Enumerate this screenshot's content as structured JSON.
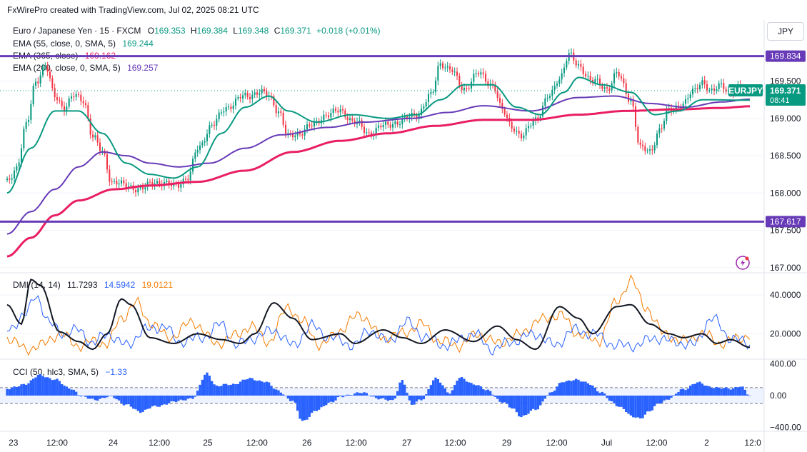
{
  "watermark": "FxWirePro created with TradingView.com, Jul 02, 2025 08:21 UTC",
  "symbol": {
    "name": "Euro / Japanese Yen · 15 · FXCM",
    "o_label": "O",
    "o": "169.353",
    "h_label": "H",
    "h": "169.384",
    "l_label": "L",
    "l": "169.348",
    "c_label": "C",
    "c": "169.371",
    "change": "+0.018 (+0.01%)"
  },
  "currency_button": "JPY",
  "ticker_label": "EURJPY",
  "last_price": "169.371",
  "countdown": "08:41",
  "colors": {
    "up": "#089981",
    "down": "#f23645",
    "ema55": "#089981",
    "ema365": "#e91e63",
    "ema200": "#673ab7",
    "hline": "#673ab7",
    "di_plus": "#2962ff",
    "di_minus": "#f57c00",
    "adx": "#131722",
    "cci": "#2962ff"
  },
  "legend": {
    "ema55": {
      "name": "EMA (55, close, 0, SMA, 5)",
      "value": "169.244"
    },
    "ema365": {
      "name": "EMA (365, close)",
      "value": "169.162"
    },
    "ema200": {
      "name": "EMA (200, close, 0, SMA, 5)",
      "value": "169.257"
    }
  },
  "dmi_legend": {
    "name": "DMI (14, 14)",
    "v1": "11.7293",
    "v2": "14.5942",
    "v3": "19.0121"
  },
  "cci_legend": {
    "name": "CCI (50, hlc3, SMA, 5)",
    "value": "−1.33"
  },
  "chart_data": [
    {
      "type": "candlestick",
      "title": "Euro / Japanese Yen · 15 · FXCM",
      "price_ticks": [
        "169.500",
        "169.000",
        "168.500",
        "168.000",
        "167.500",
        "167.000"
      ],
      "price_tick_values": [
        169.5,
        169.0,
        168.5,
        168.0,
        167.5,
        167.0
      ],
      "ylim": [
        166.95,
        170.3
      ],
      "horizontal_lines": [
        169.834,
        167.617
      ],
      "horizontal_line_labels": [
        "169.834",
        "167.617"
      ],
      "price_anchors": [
        [
          0,
          168.15
        ],
        [
          4,
          168.35
        ],
        [
          8,
          168.9
        ],
        [
          12,
          169.5
        ],
        [
          16,
          169.7
        ],
        [
          20,
          169.3
        ],
        [
          24,
          169.15
        ],
        [
          28,
          169.3
        ],
        [
          32,
          169.25
        ],
        [
          36,
          168.75
        ],
        [
          40,
          168.55
        ],
        [
          44,
          168.15
        ],
        [
          50,
          168.1
        ],
        [
          56,
          168.05
        ],
        [
          62,
          168.15
        ],
        [
          70,
          168.1
        ],
        [
          76,
          168.2
        ],
        [
          80,
          168.6
        ],
        [
          86,
          168.9
        ],
        [
          92,
          169.15
        ],
        [
          100,
          169.3
        ],
        [
          106,
          169.35
        ],
        [
          110,
          169.3
        ],
        [
          114,
          169.1
        ],
        [
          118,
          168.75
        ],
        [
          122,
          168.8
        ],
        [
          128,
          168.9
        ],
        [
          134,
          169.05
        ],
        [
          140,
          169.1
        ],
        [
          146,
          168.95
        ],
        [
          152,
          168.8
        ],
        [
          158,
          168.9
        ],
        [
          164,
          168.95
        ],
        [
          172,
          169.05
        ],
        [
          178,
          169.3
        ],
        [
          182,
          169.75
        ],
        [
          186,
          169.65
        ],
        [
          192,
          169.4
        ],
        [
          198,
          169.6
        ],
        [
          204,
          169.45
        ],
        [
          208,
          169.1
        ],
        [
          212,
          168.9
        ],
        [
          216,
          168.75
        ],
        [
          222,
          169.0
        ],
        [
          228,
          169.3
        ],
        [
          232,
          169.55
        ],
        [
          236,
          169.85
        ],
        [
          240,
          169.7
        ],
        [
          246,
          169.5
        ],
        [
          252,
          169.4
        ],
        [
          256,
          169.6
        ],
        [
          262,
          169.25
        ],
        [
          266,
          168.6
        ],
        [
          270,
          168.55
        ],
        [
          274,
          168.85
        ],
        [
          278,
          169.1
        ],
        [
          284,
          169.2
        ],
        [
          288,
          169.35
        ],
        [
          292,
          169.5
        ],
        [
          296,
          169.35
        ],
        [
          300,
          169.45
        ],
        [
          304,
          169.35
        ],
        [
          308,
          169.4
        ],
        [
          312,
          169.371
        ]
      ],
      "ema55_anchors": [
        [
          0,
          168.0
        ],
        [
          10,
          168.6
        ],
        [
          20,
          169.1
        ],
        [
          30,
          169.1
        ],
        [
          40,
          168.8
        ],
        [
          50,
          168.4
        ],
        [
          60,
          168.25
        ],
        [
          70,
          168.2
        ],
        [
          80,
          168.35
        ],
        [
          90,
          168.8
        ],
        [
          100,
          169.15
        ],
        [
          110,
          169.3
        ],
        [
          118,
          169.1
        ],
        [
          130,
          168.95
        ],
        [
          145,
          169.05
        ],
        [
          160,
          169.0
        ],
        [
          172,
          169.05
        ],
        [
          182,
          169.25
        ],
        [
          192,
          169.45
        ],
        [
          204,
          169.45
        ],
        [
          214,
          169.15
        ],
        [
          224,
          169.05
        ],
        [
          234,
          169.35
        ],
        [
          240,
          169.55
        ],
        [
          250,
          169.45
        ],
        [
          262,
          169.35
        ],
        [
          272,
          169.05
        ],
        [
          282,
          169.1
        ],
        [
          292,
          169.25
        ],
        [
          312,
          169.244
        ]
      ],
      "ema365_anchors": [
        [
          0,
          167.15
        ],
        [
          10,
          167.4
        ],
        [
          20,
          167.7
        ],
        [
          30,
          167.9
        ],
        [
          45,
          168.05
        ],
        [
          60,
          168.1
        ],
        [
          80,
          168.15
        ],
        [
          100,
          168.3
        ],
        [
          120,
          168.55
        ],
        [
          140,
          168.7
        ],
        [
          160,
          168.8
        ],
        [
          180,
          168.9
        ],
        [
          200,
          168.98
        ],
        [
          220,
          168.98
        ],
        [
          240,
          169.05
        ],
        [
          260,
          169.1
        ],
        [
          280,
          169.12
        ],
        [
          300,
          169.14
        ],
        [
          312,
          169.162
        ]
      ],
      "ema200_anchors": [
        [
          0,
          167.45
        ],
        [
          10,
          167.75
        ],
        [
          20,
          168.05
        ],
        [
          30,
          168.35
        ],
        [
          40,
          168.55
        ],
        [
          50,
          168.5
        ],
        [
          60,
          168.4
        ],
        [
          72,
          168.35
        ],
        [
          85,
          168.4
        ],
        [
          100,
          168.6
        ],
        [
          115,
          168.78
        ],
        [
          135,
          168.88
        ],
        [
          150,
          168.95
        ],
        [
          170,
          169.0
        ],
        [
          185,
          169.08
        ],
        [
          200,
          169.17
        ],
        [
          220,
          169.1
        ],
        [
          240,
          169.28
        ],
        [
          255,
          169.3
        ],
        [
          270,
          169.2
        ],
        [
          285,
          169.15
        ],
        [
          300,
          169.22
        ],
        [
          312,
          169.257
        ]
      ]
    },
    {
      "type": "line",
      "title": "DMI (14, 14)",
      "yticks": [
        "40.0000",
        "20.0000"
      ],
      "ytick_values": [
        40,
        20
      ],
      "ylim": [
        8,
        50
      ],
      "adx_anchors": [
        [
          0,
          35
        ],
        [
          6,
          25
        ],
        [
          10,
          48
        ],
        [
          14,
          45
        ],
        [
          22,
          21
        ],
        [
          30,
          16
        ],
        [
          36,
          12
        ],
        [
          42,
          20
        ],
        [
          48,
          38
        ],
        [
          52,
          35
        ],
        [
          60,
          18
        ],
        [
          70,
          15
        ],
        [
          80,
          20
        ],
        [
          90,
          17
        ],
        [
          98,
          15
        ],
        [
          104,
          20
        ],
        [
          112,
          36
        ],
        [
          120,
          28
        ],
        [
          128,
          17
        ],
        [
          140,
          20
        ],
        [
          146,
          15
        ],
        [
          158,
          22
        ],
        [
          166,
          18
        ],
        [
          174,
          15
        ],
        [
          184,
          22
        ],
        [
          196,
          16
        ],
        [
          206,
          24
        ],
        [
          214,
          17
        ],
        [
          222,
          12
        ],
        [
          232,
          34
        ],
        [
          240,
          28
        ],
        [
          246,
          20
        ],
        [
          256,
          34
        ],
        [
          262,
          35
        ],
        [
          270,
          25
        ],
        [
          278,
          20
        ],
        [
          284,
          18
        ],
        [
          292,
          20
        ],
        [
          298,
          15
        ],
        [
          304,
          17
        ],
        [
          312,
          13
        ]
      ],
      "di_plus_anchors": [
        [
          0,
          22
        ],
        [
          8,
          30
        ],
        [
          12,
          40
        ],
        [
          18,
          25
        ],
        [
          24,
          20
        ],
        [
          30,
          22
        ],
        [
          36,
          15
        ],
        [
          42,
          20
        ],
        [
          50,
          14
        ],
        [
          58,
          22
        ],
        [
          66,
          24
        ],
        [
          72,
          16
        ],
        [
          82,
          18
        ],
        [
          90,
          25
        ],
        [
          96,
          14
        ],
        [
          104,
          18
        ],
        [
          112,
          22
        ],
        [
          120,
          14
        ],
        [
          128,
          24
        ],
        [
          136,
          18
        ],
        [
          146,
          14
        ],
        [
          152,
          22
        ],
        [
          160,
          16
        ],
        [
          168,
          26
        ],
        [
          176,
          18
        ],
        [
          184,
          14
        ],
        [
          196,
          20
        ],
        [
          204,
          12
        ],
        [
          212,
          16
        ],
        [
          222,
          20
        ],
        [
          230,
          14
        ],
        [
          238,
          22
        ],
        [
          246,
          20
        ],
        [
          256,
          14
        ],
        [
          264,
          14
        ],
        [
          272,
          18
        ],
        [
          280,
          16
        ],
        [
          288,
          14
        ],
        [
          296,
          28
        ],
        [
          304,
          18
        ],
        [
          312,
          14.59
        ]
      ],
      "di_minus_anchors": [
        [
          0,
          18
        ],
        [
          8,
          12
        ],
        [
          14,
          14
        ],
        [
          22,
          20
        ],
        [
          30,
          14
        ],
        [
          36,
          16
        ],
        [
          42,
          15
        ],
        [
          48,
          28
        ],
        [
          54,
          36
        ],
        [
          60,
          26
        ],
        [
          68,
          18
        ],
        [
          78,
          26
        ],
        [
          88,
          15
        ],
        [
          96,
          19
        ],
        [
          102,
          24
        ],
        [
          110,
          16
        ],
        [
          118,
          34
        ],
        [
          124,
          26
        ],
        [
          132,
          14
        ],
        [
          140,
          22
        ],
        [
          148,
          30
        ],
        [
          158,
          18
        ],
        [
          166,
          20
        ],
        [
          174,
          25
        ],
        [
          182,
          16
        ],
        [
          190,
          14
        ],
        [
          198,
          20
        ],
        [
          206,
          15
        ],
        [
          214,
          19
        ],
        [
          224,
          27
        ],
        [
          232,
          30
        ],
        [
          240,
          20
        ],
        [
          248,
          16
        ],
        [
          256,
          36
        ],
        [
          262,
          48
        ],
        [
          268,
          34
        ],
        [
          276,
          20
        ],
        [
          284,
          16
        ],
        [
          292,
          20
        ],
        [
          300,
          15
        ],
        [
          308,
          18
        ],
        [
          312,
          19.01
        ]
      ]
    },
    {
      "type": "histogram",
      "title": "CCI (50, hlc3, SMA, 5)",
      "yticks": [
        "400.00",
        "0.00",
        "−400.00"
      ],
      "ytick_values": [
        400,
        0,
        -400
      ],
      "ylim": [
        -430,
        430
      ],
      "bands": [
        100,
        -100
      ],
      "cci_anchors": [
        [
          0,
          80
        ],
        [
          8,
          150
        ],
        [
          14,
          260
        ],
        [
          20,
          200
        ],
        [
          26,
          100
        ],
        [
          32,
          -20
        ],
        [
          38,
          -50
        ],
        [
          44,
          -10
        ],
        [
          50,
          -120
        ],
        [
          56,
          -200
        ],
        [
          62,
          -140
        ],
        [
          70,
          -80
        ],
        [
          78,
          -30
        ],
        [
          84,
          280
        ],
        [
          88,
          120
        ],
        [
          94,
          140
        ],
        [
          102,
          210
        ],
        [
          108,
          180
        ],
        [
          114,
          60
        ],
        [
          120,
          -70
        ],
        [
          124,
          -320
        ],
        [
          130,
          -190
        ],
        [
          136,
          -80
        ],
        [
          140,
          -20
        ],
        [
          148,
          40
        ],
        [
          156,
          -30
        ],
        [
          162,
          -70
        ],
        [
          166,
          200
        ],
        [
          170,
          -120
        ],
        [
          174,
          -50
        ],
        [
          180,
          210
        ],
        [
          186,
          40
        ],
        [
          190,
          220
        ],
        [
          196,
          150
        ],
        [
          202,
          60
        ],
        [
          208,
          -80
        ],
        [
          212,
          -160
        ],
        [
          216,
          -260
        ],
        [
          222,
          -180
        ],
        [
          228,
          30
        ],
        [
          234,
          180
        ],
        [
          238,
          200
        ],
        [
          244,
          160
        ],
        [
          250,
          30
        ],
        [
          254,
          -80
        ],
        [
          258,
          -150
        ],
        [
          262,
          -260
        ],
        [
          266,
          -280
        ],
        [
          270,
          -200
        ],
        [
          274,
          -90
        ],
        [
          278,
          -40
        ],
        [
          284,
          80
        ],
        [
          290,
          160
        ],
        [
          296,
          110
        ],
        [
          300,
          90
        ],
        [
          304,
          90
        ],
        [
          308,
          120
        ],
        [
          312,
          -1.33
        ]
      ]
    }
  ],
  "time_axis": [
    {
      "label": "23",
      "pos": 0.002
    },
    {
      "label": "12:00",
      "pos": 0.066
    },
    {
      "label": "24",
      "pos": 0.14
    },
    {
      "label": "12:00",
      "pos": 0.201
    },
    {
      "label": "25",
      "pos": 0.265
    },
    {
      "label": "12:00",
      "pos": 0.33
    },
    {
      "label": "26",
      "pos": 0.396
    },
    {
      "label": "12:00",
      "pos": 0.461
    },
    {
      "label": "27",
      "pos": 0.528
    },
    {
      "label": "12:00",
      "pos": 0.592
    },
    {
      "label": "29",
      "pos": 0.66
    },
    {
      "label": "12:00",
      "pos": 0.726
    },
    {
      "label": "Jul",
      "pos": 0.792
    },
    {
      "label": "12:00",
      "pos": 0.858
    },
    {
      "label": "2",
      "pos": 0.924
    },
    {
      "label": "12:0",
      "pos": 0.985
    }
  ]
}
